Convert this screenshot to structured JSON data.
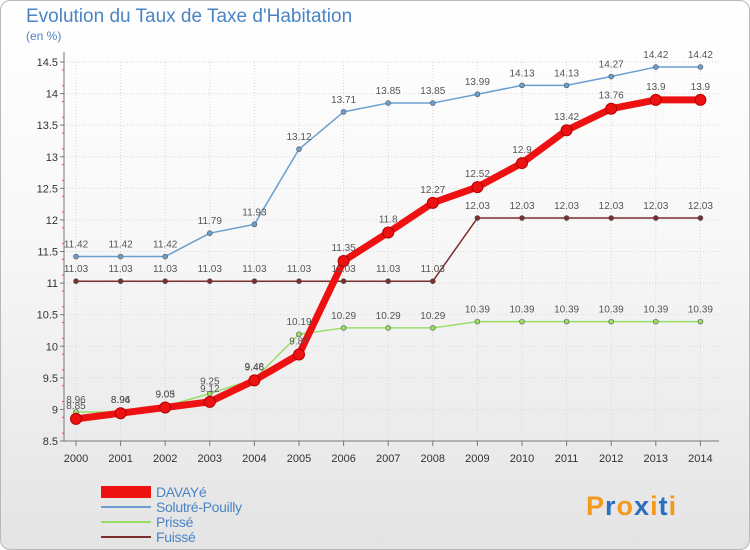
{
  "title": "Evolution du Taux de Taxe d'Habitation",
  "subtitle": "(en %)",
  "logo": {
    "text": "Proxiti",
    "colors": [
      "#f39a1d",
      "#2c6fbe",
      "#f39a1d",
      "#2c6fbe",
      "#f39a1d",
      "#2c6fbe",
      "#f39a1d"
    ]
  },
  "chart_data": {
    "type": "line",
    "title": "Evolution du Taux de Taxe d'Habitation",
    "ylabel": "(en %)",
    "xlabel": "",
    "ylim": [
      8.5,
      14.5
    ],
    "yticks": [
      "8.5",
      "9",
      "9.5",
      "10",
      "10.5",
      "11",
      "11.5",
      "12",
      "12.5",
      "13",
      "13.5",
      "14",
      "14.5"
    ],
    "x": [
      "2000",
      "2001",
      "2002",
      "2003",
      "2004",
      "2005",
      "2006",
      "2007",
      "2008",
      "2009",
      "2010",
      "2011",
      "2012",
      "2013",
      "2014"
    ],
    "series": [
      {
        "name": "Fuissé",
        "color": "#7a2e2e",
        "width": 1.5,
        "marker": 5,
        "values": [
          11.03,
          11.03,
          11.03,
          11.03,
          11.03,
          11.03,
          11.03,
          11.03,
          11.03,
          12.03,
          12.03,
          12.03,
          12.03,
          12.03,
          12.03
        ],
        "labels": [
          "11.03",
          "11.03",
          "11.03",
          "11.03",
          "11.03",
          "11.03",
          "11.03",
          "11.03",
          "11.03",
          "12.03",
          "12.03",
          "12.03",
          "12.03",
          "12.03",
          "12.03"
        ]
      },
      {
        "name": "Prissé",
        "color": "#99dd66",
        "width": 1.5,
        "marker": 5,
        "values": [
          8.96,
          8.96,
          9.05,
          9.25,
          9.48,
          10.19,
          10.29,
          10.29,
          10.29,
          10.39,
          10.39,
          10.39,
          10.39,
          10.39,
          10.39
        ],
        "labels": [
          "8.96",
          "8.96",
          "9.05",
          "9.25",
          "9.48",
          "10.19",
          "10.29",
          "10.29",
          "10.29",
          "10.39",
          "10.39",
          "10.39",
          "10.39",
          "10.39",
          "10.39"
        ]
      },
      {
        "name": "Solutré-Pouilly",
        "color": "#6b9fd0",
        "width": 1.5,
        "marker": 5,
        "values": [
          11.42,
          11.42,
          11.42,
          11.79,
          11.93,
          13.12,
          13.71,
          13.85,
          13.85,
          13.99,
          14.13,
          14.13,
          14.27,
          14.42,
          14.42
        ],
        "labels": [
          "11.42",
          "11.42",
          "11.42",
          "11.79",
          "11.93",
          "13.12",
          "13.71",
          "13.85",
          "13.85",
          "13.99",
          "14.13",
          "14.13",
          "14.27",
          "14.42",
          "14.42"
        ]
      },
      {
        "name": "DAVAYé",
        "color": "#ee1111",
        "width": 7,
        "marker": 11,
        "values": [
          8.85,
          8.94,
          9.03,
          9.12,
          9.46,
          9.87,
          11.35,
          11.8,
          12.27,
          12.52,
          12.9,
          13.42,
          13.76,
          13.9,
          13.9
        ],
        "labels": [
          "8.85",
          "8.94",
          "9.03",
          "9.12",
          "9.46",
          "9.87",
          "11.35",
          "11.8",
          "12.27",
          "12.52",
          "12.9",
          "13.42",
          "13.76",
          "13.9",
          "13.9"
        ]
      }
    ],
    "legend": [
      {
        "name": "DAVAYé",
        "color": "#ee1111",
        "thickness": 12
      },
      {
        "name": "Solutré-Pouilly",
        "color": "#6b9fd0",
        "thickness": 2
      },
      {
        "name": "Prissé",
        "color": "#99dd66",
        "thickness": 2
      },
      {
        "name": "Fuissé",
        "color": "#7a2e2e",
        "thickness": 2
      }
    ]
  }
}
